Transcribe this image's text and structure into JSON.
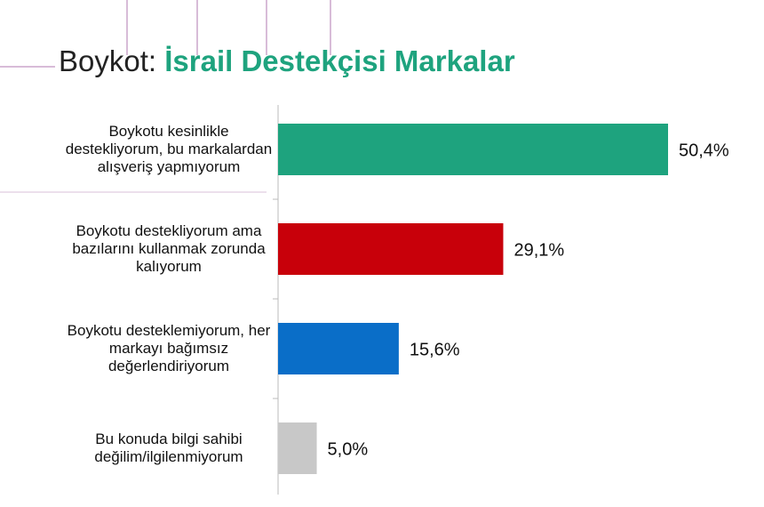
{
  "chart_data": {
    "type": "bar",
    "orientation": "horizontal",
    "title": "Boykot:",
    "title_highlight": "İsrail Destekçisi Markalar",
    "categories": [
      "Boykotu kesinlikle destekliyorum, bu markalardan alışveriş yapmıyorum",
      "Boykotu destekliyorum ama bazılarını kullanmak zorunda kalıyorum",
      "Boykotu desteklemiyorum, her markayı bağımsız değerlendiriyorum",
      "Bu konuda bilgi sahibi değilim/ilgilenmiyorum"
    ],
    "values": [
      50.4,
      29.1,
      15.6,
      5.0
    ],
    "value_labels": [
      "50,4%",
      "29,1%",
      "15,6%",
      "5,0%"
    ],
    "colors": [
      "#1ea37e",
      "#c8000a",
      "#0a6ec8",
      "#c8c8c8"
    ],
    "title_highlight_color": "#1ea37e"
  }
}
